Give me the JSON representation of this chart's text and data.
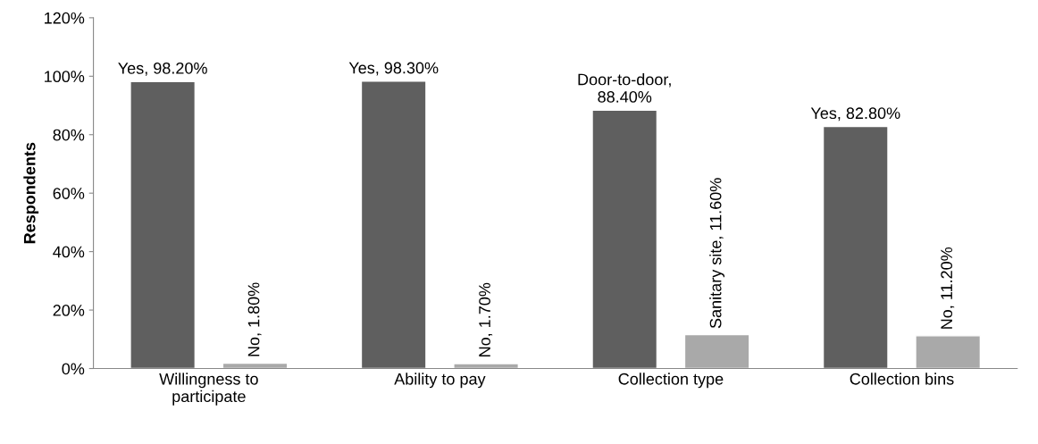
{
  "chart_data": {
    "type": "bar",
    "ylabel": "Respondents",
    "categories": [
      "Willingness to\nparticipate",
      "Ability to pay",
      "Collection type",
      "Collection bins"
    ],
    "series": [
      {
        "color": "#5f5f5f",
        "values": [
          98.2,
          98.3,
          88.4,
          82.8
        ],
        "value_labels": [
          "Yes, 98.20%",
          "Yes, 98.30%",
          "Door-to-door,\n88.40%",
          "Yes, 82.80%"
        ]
      },
      {
        "color": "#a9a9a9",
        "values": [
          1.8,
          1.7,
          11.6,
          11.2
        ],
        "value_labels": [
          "No, 1.80%",
          "No, 1.70%",
          "Sanitary site, 11.60%",
          "No, 11.20%"
        ]
      }
    ],
    "ylim": [
      0,
      120
    ],
    "yticks": [
      {
        "value": 0,
        "label": "0%"
      },
      {
        "value": 20,
        "label": "20%"
      },
      {
        "value": 40,
        "label": "40%"
      },
      {
        "value": 60,
        "label": "60%"
      },
      {
        "value": 80,
        "label": "80%"
      },
      {
        "value": 100,
        "label": "100%"
      },
      {
        "value": 120,
        "label": "120%"
      }
    ],
    "grid": false
  }
}
